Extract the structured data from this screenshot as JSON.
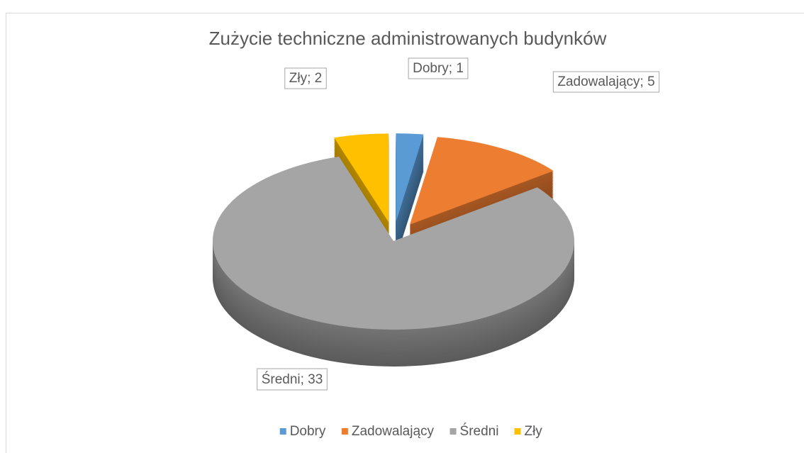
{
  "chart_data": {
    "type": "pie",
    "title": "Zużycie techniczne administrowanych budynków",
    "categories": [
      "Dobry",
      "Zadowalający",
      "Średni",
      "Zły"
    ],
    "values": [
      1,
      5,
      33,
      2
    ],
    "value_labels": [
      "Dobry; 1",
      "Zadowalający; 5",
      "Średni; 33",
      "Zły; 2"
    ],
    "colors": [
      "#5b9bd5",
      "#ed7d31",
      "#a5a5a5",
      "#ffc000"
    ],
    "legend": "bottom"
  }
}
